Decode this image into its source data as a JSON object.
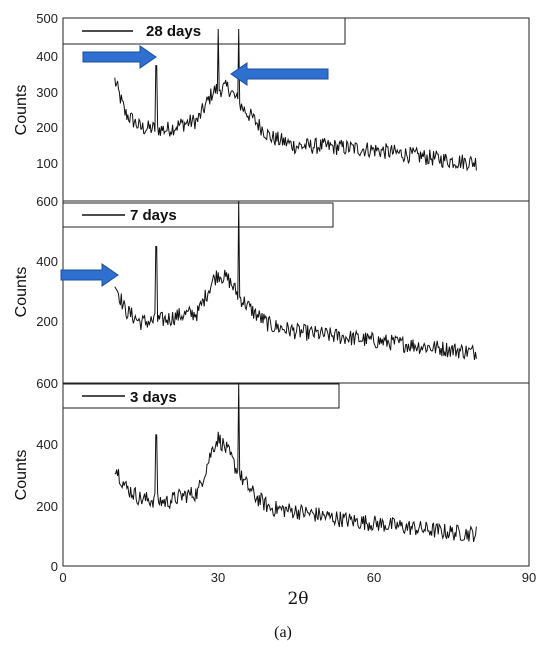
{
  "chart_data": [
    {
      "type": "line",
      "series": [
        {
          "name": "28 days"
        }
      ],
      "ylabel": "Counts",
      "ylim": [
        0,
        500
      ],
      "yticks": [
        "100",
        "200",
        "300",
        "400",
        "500"
      ],
      "xlim": [
        0,
        90
      ],
      "annotations": [
        "arrow-right at 2θ≈10",
        "arrow-left at 2θ≈32"
      ],
      "x": [
        10,
        12,
        15,
        18,
        20,
        23,
        26,
        29,
        30,
        32,
        34,
        37,
        40,
        45,
        50,
        55,
        60,
        65,
        70,
        75,
        80
      ],
      "y": [
        330,
        240,
        200,
        370,
        195,
        210,
        220,
        300,
        470,
        310,
        470,
        220,
        175,
        150,
        150,
        145,
        140,
        130,
        120,
        110,
        105
      ]
    },
    {
      "type": "line",
      "series": [
        {
          "name": "7 days"
        }
      ],
      "ylabel": "Counts",
      "ylim": [
        0,
        600
      ],
      "yticks": [
        "200",
        "400",
        "600"
      ],
      "xlim": [
        0,
        90
      ],
      "annotations": [
        "arrow-right at 2θ≈10"
      ],
      "x": [
        10,
        12,
        15,
        18,
        20,
        23,
        26,
        29,
        30,
        32,
        34,
        37,
        40,
        45,
        50,
        55,
        60,
        65,
        70,
        75,
        80
      ],
      "y": [
        330,
        240,
        200,
        450,
        210,
        225,
        230,
        340,
        360,
        340,
        600,
        230,
        190,
        170,
        160,
        150,
        140,
        130,
        120,
        110,
        100
      ]
    },
    {
      "type": "line",
      "series": [
        {
          "name": "3 days"
        }
      ],
      "xlabel": "2θ",
      "ylabel": "Counts",
      "ylim": [
        0,
        600
      ],
      "yticks": [
        "0",
        "200",
        "400",
        "600"
      ],
      "xlim": [
        0,
        90
      ],
      "xticks": [
        "0",
        "30",
        "60",
        "90"
      ],
      "x": [
        10,
        12,
        15,
        18,
        20,
        23,
        26,
        29,
        30,
        32,
        34,
        37,
        40,
        45,
        50,
        55,
        60,
        65,
        70,
        75,
        80
      ],
      "y": [
        330,
        260,
        220,
        430,
        210,
        230,
        240,
        390,
        420,
        370,
        600,
        230,
        190,
        180,
        165,
        150,
        140,
        130,
        120,
        110,
        105
      ]
    }
  ],
  "caption": "(a)",
  "colors": {
    "trace": "#111111",
    "arrow": "#2e6fd0",
    "arrow_edge": "#1b4f9c"
  }
}
